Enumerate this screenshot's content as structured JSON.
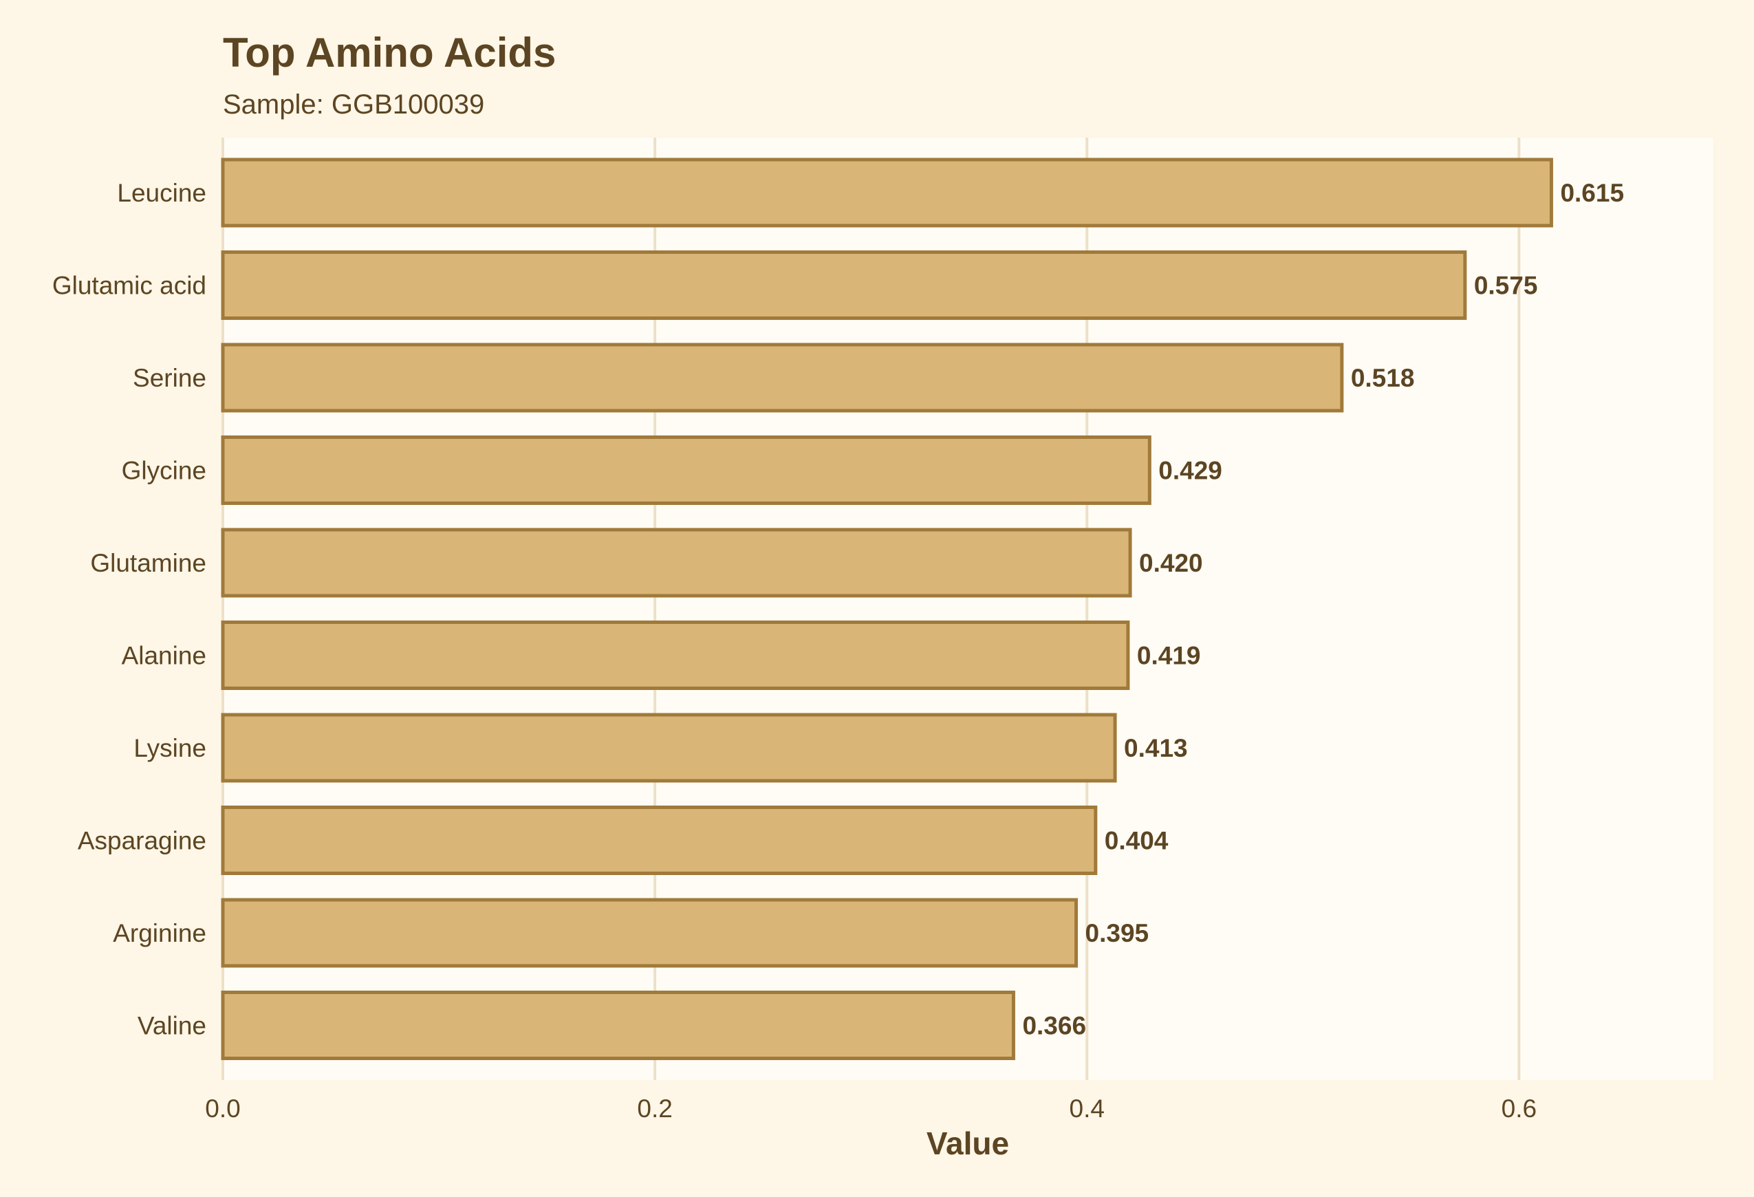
{
  "chart_data": {
    "type": "bar",
    "orientation": "horizontal",
    "title": "Top Amino Acids",
    "subtitle": "Sample: GGB100039",
    "xlabel": "Value",
    "ylabel": "",
    "categories": [
      "Leucine",
      "Glutamic acid",
      "Serine",
      "Glycine",
      "Glutamine",
      "Alanine",
      "Lysine",
      "Asparagine",
      "Arginine",
      "Valine"
    ],
    "values": [
      0.615,
      0.575,
      0.518,
      0.429,
      0.42,
      0.419,
      0.413,
      0.404,
      0.395,
      0.366
    ],
    "value_labels": [
      "0.615",
      "0.575",
      "0.518",
      "0.429",
      "0.420",
      "0.419",
      "0.413",
      "0.404",
      "0.395",
      "0.366"
    ],
    "xlim": [
      0,
      0.69
    ],
    "xticks": [
      0.0,
      0.2,
      0.4,
      0.6
    ],
    "xtick_labels": [
      "0.0",
      "0.2",
      "0.4",
      "0.6"
    ],
    "grid": "vertical",
    "legend": "none",
    "colors": {
      "page_background": "#fef6e6",
      "panel_background": "#fffcf5",
      "bar_fill": "#d9b578",
      "bar_outline": "#a07a3a",
      "gridline": "#ede0c8",
      "text": "#5c4523"
    }
  }
}
